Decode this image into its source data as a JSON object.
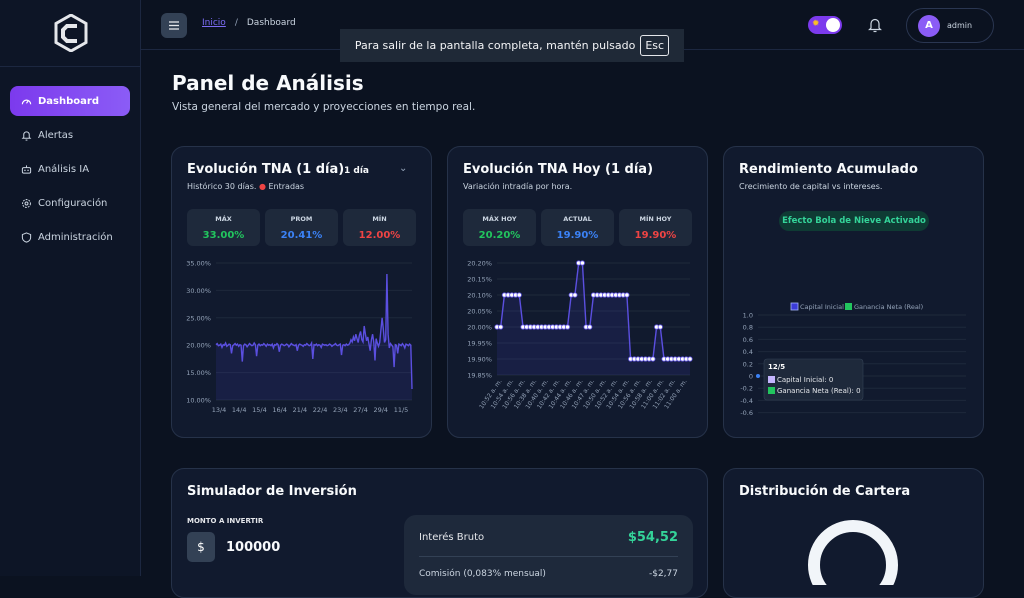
{
  "sidebar": {
    "items": [
      {
        "label": "Dashboard",
        "icon": "gauge-icon"
      },
      {
        "label": "Alertas",
        "icon": "bell-icon"
      },
      {
        "label": "Análisis IA",
        "icon": "robot-icon"
      },
      {
        "label": "Configuración",
        "icon": "gear-icon"
      },
      {
        "label": "Administración",
        "icon": "shield-icon"
      }
    ]
  },
  "header": {
    "breadcrumb_home": "Inicio",
    "breadcrumb_sep": "/",
    "breadcrumb_current": "Dashboard",
    "user_initial": "A",
    "user_name": "admin"
  },
  "fullscreen_tip": {
    "text": "Para salir de la pantalla completa, mantén pulsado",
    "key": "Esc"
  },
  "page": {
    "title": "Panel de Análisis",
    "subtitle": "Vista general del mercado y proyecciones en tiempo real."
  },
  "card1": {
    "title": "Evolución TNA (1 día)",
    "subtitle": "Histórico 30 días.",
    "dot": "●",
    "legend": "Entradas",
    "select": "1 día",
    "stats": [
      {
        "label": "MÁX",
        "value": "33.00%",
        "color": "#22c55e"
      },
      {
        "label": "PROM",
        "value": "20.41%",
        "color": "#3b82f6"
      },
      {
        "label": "MÍN",
        "value": "12.00%",
        "color": "#ef4444"
      }
    ]
  },
  "card2": {
    "title": "Evolución TNA Hoy (1 día)",
    "subtitle": "Variación intradía por hora.",
    "stats": [
      {
        "label": "MÁX HOY",
        "value": "20.20%",
        "color": "#22c55e"
      },
      {
        "label": "ACTUAL",
        "value": "19.90%",
        "color": "#3b82f6"
      },
      {
        "label": "MÍN HOY",
        "value": "19.90%",
        "color": "#ef4444"
      }
    ]
  },
  "card3": {
    "title": "Rendimiento Acumulado",
    "subtitle": "Crecimiento de capital vs intereses.",
    "badge": "Efecto Bola de Nieve Activado",
    "legend": [
      "Capital Inicial",
      "Ganancia Neta (Real)"
    ],
    "tooltip": {
      "title": "12/5",
      "rows": [
        "Capital Inicial: 0",
        "Ganancia Neta (Real): 0"
      ]
    }
  },
  "card4": {
    "title": "Simulador de Inversión",
    "amount_label": "MONTO A INVERTIR",
    "currency": "$",
    "amount": "100000",
    "gross_label": "Interés Bruto",
    "gross_value": "$54,52",
    "fee_label": "Comisión (0,083% mensual)",
    "fee_value": "-$2,77"
  },
  "card5": {
    "title": "Distribución de Cartera"
  },
  "chart_data": [
    {
      "type": "line",
      "title": "Evolución TNA (1 día)",
      "series": [
        {
          "name": "Entradas"
        }
      ],
      "x_ticks": [
        "13/4",
        "14/4",
        "15/4",
        "16/4",
        "21/4",
        "22/4",
        "23/4",
        "27/4",
        "29/4",
        "11/5"
      ],
      "y_ticks": [
        "35.00%",
        "30.00%",
        "25.00%",
        "20.00%",
        "15.00%",
        "10.00%"
      ],
      "ylim": [
        10,
        35
      ],
      "values": [
        20.1,
        20.3,
        19.9,
        20.0,
        20.2,
        19.6,
        20.1,
        20.0,
        20.4,
        19.8,
        20.0,
        20.2,
        20.1,
        18.5,
        19.9,
        20.1,
        20.3,
        20.0,
        20.2,
        19.8,
        20.1,
        20.0,
        17.0,
        19.9,
        20.2,
        20.1,
        19.7,
        20.0,
        20.3,
        20.1,
        19.9,
        20.0,
        20.4,
        20.1,
        18.0,
        20.0,
        20.2,
        19.9,
        20.1,
        20.0,
        20.3,
        20.1,
        19.8,
        20.2,
        20.0,
        20.1,
        19.9,
        20.2,
        19.5,
        20.1,
        20.0,
        20.3,
        20.1,
        18.8,
        20.0,
        20.2,
        20.1,
        19.9,
        20.0,
        20.2,
        20.1,
        19.7,
        20.0,
        20.3,
        20.1,
        20.0,
        19.9,
        20.1,
        19.0,
        20.0,
        20.2,
        20.1,
        20.0,
        19.8,
        20.1,
        20.0,
        20.3,
        20.1,
        19.9,
        20.0,
        20.4,
        17.5,
        20.1,
        20.0,
        20.2,
        19.9,
        20.1,
        20.0,
        19.6,
        20.2,
        20.1,
        20.0,
        20.1,
        19.9,
        20.0,
        20.2,
        20.1,
        19.8,
        20.0,
        20.1,
        20.3,
        20.0,
        19.9,
        20.1,
        20.2,
        18.2,
        20.0,
        20.1,
        19.9,
        20.2,
        20.0,
        20.1,
        20.4,
        21.0,
        20.6,
        21.5,
        20.8,
        22.0,
        21.2,
        20.5,
        21.8,
        22.5,
        21.0,
        20.6,
        23.5,
        22.0,
        20.8,
        21.5,
        20.2,
        19.0,
        21.0,
        22.0,
        20.5,
        17.2,
        21.2,
        20.4,
        19.8,
        20.5,
        22.8,
        25.0,
        23.0,
        20.5,
        21.0,
        33.0,
        22.0,
        19.5,
        20.3,
        20.0,
        19.7,
        16.0,
        20.1,
        20.0,
        18.5,
        20.2,
        20.1,
        19.9,
        20.3,
        20.0,
        19.5,
        20.2,
        20.1,
        19.9,
        20.2,
        20.0,
        12.0
      ]
    },
    {
      "type": "line",
      "title": "Evolución TNA Hoy (1 día)",
      "x_ticks": [
        "10:52 a. m.",
        "10:54 a. m.",
        "10:56 a. m.",
        "10:38 a. m.",
        "10:40 a. m.",
        "10:42 a. m.",
        "10:44 a. m.",
        "10:46 a. m.",
        "10:47 a. m.",
        "10:50 a. m.",
        "10:52 a. m.",
        "10:54 a. m.",
        "10:56 a. m.",
        "10:58 a. m.",
        "11:00 a. m.",
        "11:02 a. m.",
        "11:00 a. m."
      ],
      "y_ticks": [
        "20.20%",
        "20.15%",
        "20.10%",
        "20.05%",
        "20.00%",
        "19.95%",
        "19.90%",
        "19.85%"
      ],
      "ylim": [
        19.85,
        20.2
      ],
      "values": [
        20.0,
        20.0,
        20.1,
        20.1,
        20.1,
        20.1,
        20.1,
        20.0,
        20.0,
        20.0,
        20.0,
        20.0,
        20.0,
        20.0,
        20.0,
        20.0,
        20.0,
        20.0,
        20.0,
        20.0,
        20.1,
        20.1,
        20.2,
        20.2,
        20.0,
        20.0,
        20.1,
        20.1,
        20.1,
        20.1,
        20.1,
        20.1,
        20.1,
        20.1,
        20.1,
        20.1,
        19.9,
        19.9,
        19.9,
        19.9,
        19.9,
        19.9,
        19.9,
        20.0,
        20.0,
        19.9,
        19.9,
        19.9,
        19.9,
        19.9,
        19.9,
        19.9,
        19.9
      ]
    },
    {
      "type": "area",
      "title": "Rendimiento Acumulado",
      "categories": [
        "12/5"
      ],
      "series": [
        {
          "name": "Capital Inicial",
          "values": [
            0
          ]
        },
        {
          "name": "Ganancia Neta (Real)",
          "values": [
            0
          ]
        }
      ],
      "y_ticks": [
        "1.0",
        "0.8",
        "0.6",
        "0.4",
        "0.2",
        "0",
        "-0.2",
        "-0.4",
        "-0.6",
        "-0.8",
        "-1.0"
      ],
      "ylim": [
        -1.0,
        1.0
      ]
    }
  ]
}
